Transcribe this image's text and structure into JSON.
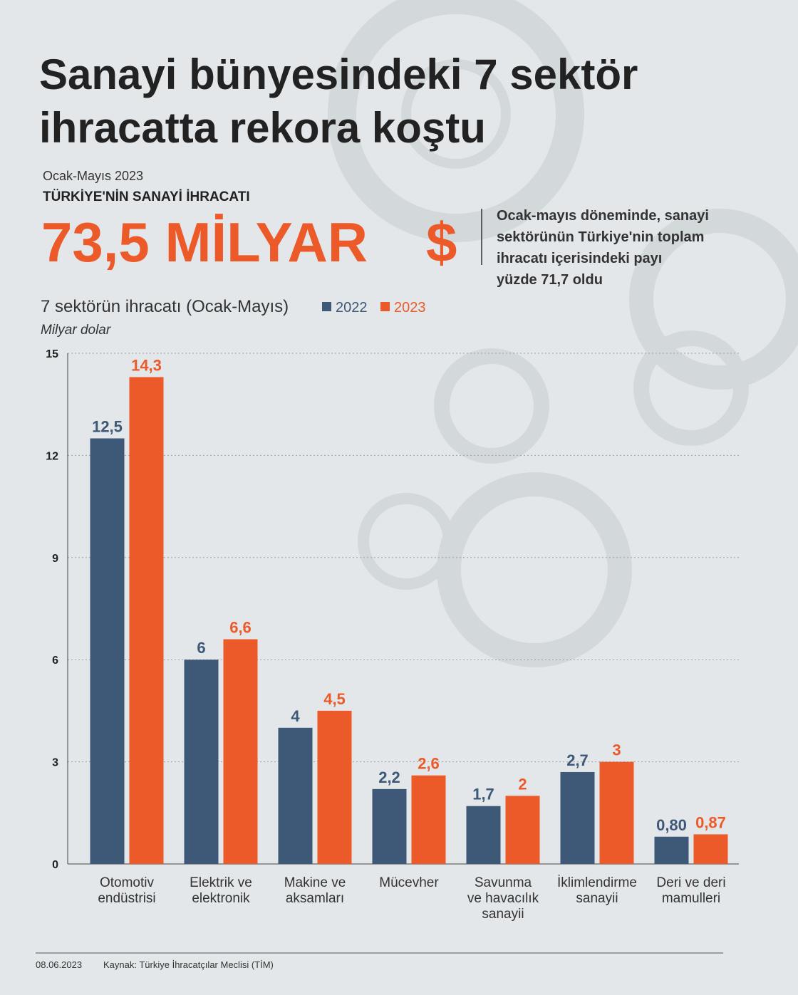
{
  "header": {
    "title": [
      "Sanayi bünyesindeki 7 sektör",
      "ihracatta rekora koştu"
    ],
    "period": "Ocak-Mayıs 2023",
    "kicker": "TÜRKİYE'NİN SANAYİ İHRACATI",
    "headline": "73,5 MİLYAR",
    "currency": "$",
    "note": [
      "Ocak-mayıs döneminde, sanayi",
      "sektörünün Türkiye'nin toplam",
      "ihracatı içerisindeki payı",
      "yüzde 71,7 oldu"
    ]
  },
  "chart_data": {
    "type": "bar",
    "title": "7 sektörün ihracatı (Ocak-Mayıs)",
    "y_label": "Milyar dolar",
    "categories": [
      [
        "Otomotiv",
        "endüstrisi"
      ],
      [
        "Elektrik ve",
        "elektronik"
      ],
      [
        "Makine ve",
        "aksamları"
      ],
      [
        "Mücevher"
      ],
      [
        "Savunma",
        "ve havacılık",
        "sanayii"
      ],
      [
        "İklimlendirme",
        "sanayii"
      ],
      [
        "Deri ve deri",
        "mamulleri"
      ]
    ],
    "series": [
      {
        "name": "2022",
        "color": "#3e5878",
        "values": [
          12.5,
          6,
          4,
          2.2,
          1.7,
          2.7,
          0.8
        ],
        "value_labels": [
          "12,5",
          "6",
          "4",
          "2,2",
          "1,7",
          "2,7",
          "0,80"
        ]
      },
      {
        "name": "2023",
        "color": "#ec5a29",
        "values": [
          14.3,
          6.6,
          4.5,
          2.6,
          2,
          3,
          0.87
        ],
        "value_labels": [
          "14,3",
          "6,6",
          "4,5",
          "2,6",
          "2",
          "3",
          "0,87"
        ]
      }
    ],
    "ylim": [
      0,
      15
    ],
    "yticks": [
      0,
      3,
      6,
      9,
      12,
      15
    ],
    "grid": true
  },
  "footer": {
    "date": "08.06.2023",
    "source": "Kaynak: Türkiye İhracatçılar Meclisi (TİM)"
  }
}
